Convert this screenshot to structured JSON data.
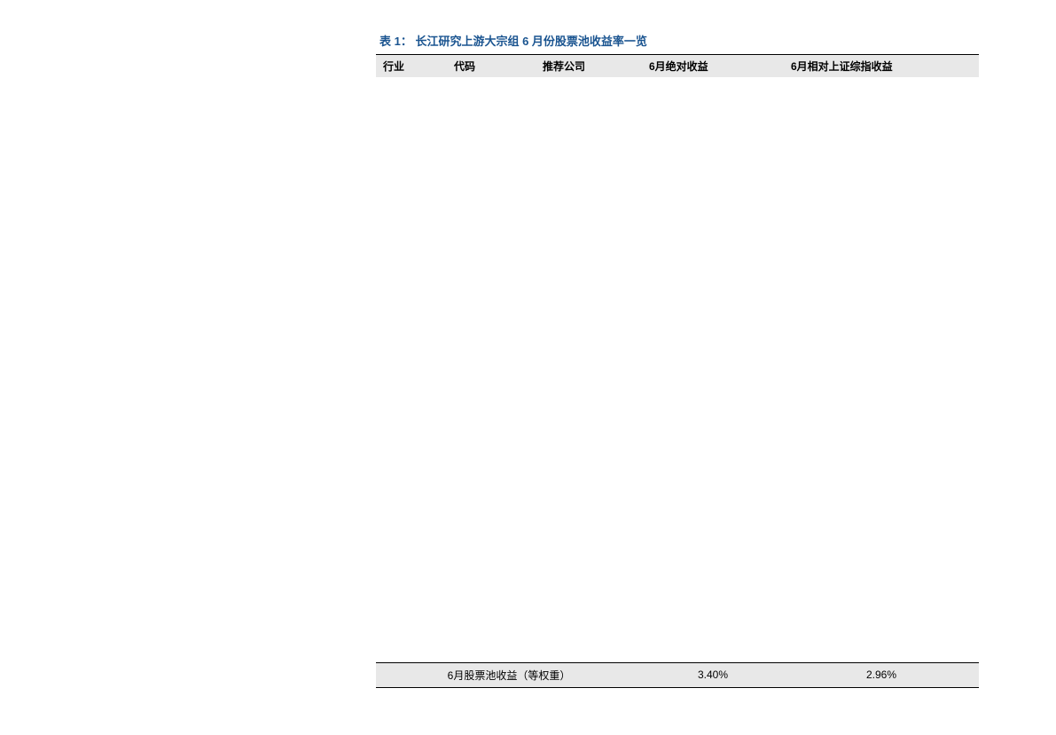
{
  "table": {
    "title_prefix": "表 1：",
    "title_text": "长江研究上游大宗组 6 月份股票池收益率一览",
    "title_color": "#1a5490",
    "headers": {
      "col1": "行业",
      "col2": "代码",
      "col3": "推荐公司",
      "col4": "6月绝对收益",
      "col5": "6月相对上证综指收益"
    },
    "header_bg": "#e8e8e8",
    "border_color": "#000000",
    "summary": {
      "label": "6月股票池收益（等权重）",
      "absolute_return": "3.40%",
      "relative_return": "2.96%",
      "bg_color": "#e8e8e8"
    }
  }
}
